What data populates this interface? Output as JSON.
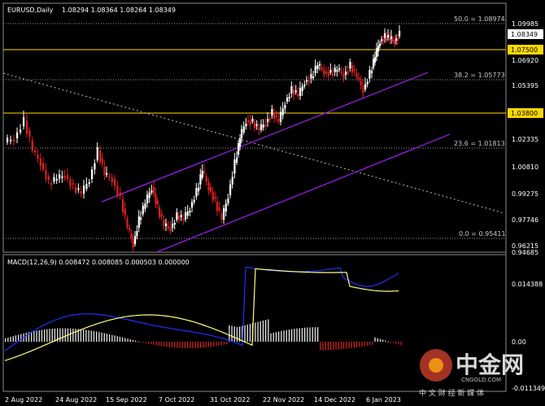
{
  "header": {
    "symbol": "EURUSD,Daily",
    "ohlc": "1.08294 1.08364 1.08264 1.08349"
  },
  "price_axis": {
    "labels": [
      "1.09985",
      "1.08349",
      "1.07500",
      "1.06920",
      "1.05395",
      "1.03800",
      "1.02335",
      "1.00810",
      "0.99275",
      "0.97746",
      "0.96215",
      "0.94685"
    ],
    "current_price": "1.08349",
    "levels": [
      {
        "label": "1.07500",
        "color": "#ffd700"
      },
      {
        "label": "1.03800",
        "color": "#ffd700"
      }
    ]
  },
  "fibonacci": [
    {
      "label": "50.0 = 1.08974"
    },
    {
      "label": "38.2 = 1.05773"
    },
    {
      "label": "23.6 = 1.01813"
    },
    {
      "label": "0.0 = 0.95411"
    }
  ],
  "macd": {
    "label": "MACD(12,26,9) 0.008472 0.008085 0.000503 0.000000",
    "axis_labels": [
      "0.014388",
      "0.00",
      "-0.011349"
    ]
  },
  "time_axis": [
    "2 Aug 2022",
    "24 Aug 2022",
    "15 Sep 2022",
    "7 Oct 2022",
    "31 Oct 2022",
    "22 Nov 2022",
    "14 Dec 2022",
    "6 Jan 2023"
  ],
  "watermark": {
    "brand": "中金网",
    "url": "CNGOLD.COM",
    "tagline": "中 文 财 经 新 媒 体"
  },
  "colors": {
    "bull": "#ffffff",
    "bear": "#e02020",
    "channel": "#a020f0",
    "level": "#ffd700",
    "macd_signal": "#ffff80",
    "macd_line": "#2030ff"
  }
}
